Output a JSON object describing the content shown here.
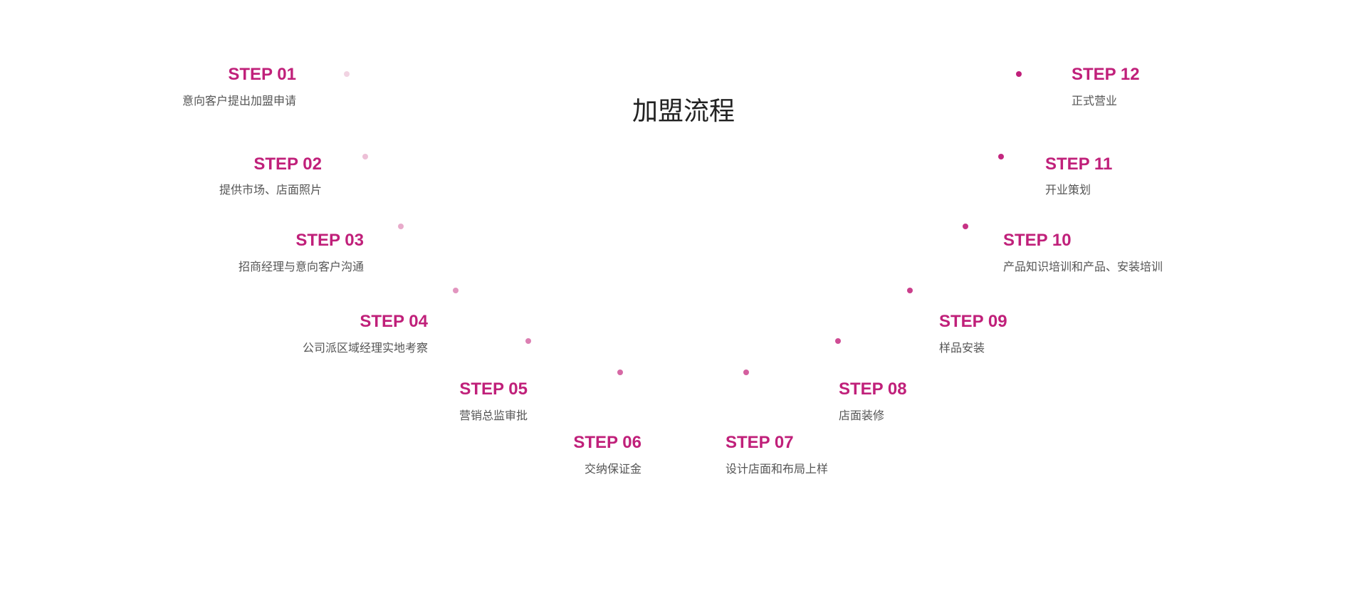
{
  "title": "加盟流程",
  "accent_color": "#c0207a",
  "steps": [
    {
      "label": "STEP 01",
      "desc": "意向客户提出加盟申请",
      "dot_color": "#f1d3e2"
    },
    {
      "label": "STEP 02",
      "desc": "提供市场、店面照片",
      "dot_color": "#edc0d7"
    },
    {
      "label": "STEP 03",
      "desc": "招商经理与意向客户沟通",
      "dot_color": "#e8abcb"
    },
    {
      "label": "STEP 04",
      "desc": "公司派区域经理实地考察",
      "dot_color": "#e295bf"
    },
    {
      "label": "STEP 05",
      "desc": "营销总监审批",
      "dot_color": "#dc7fb2"
    },
    {
      "label": "STEP 06",
      "desc": "交纳保证金",
      "dot_color": "#d669a5"
    },
    {
      "label": "STEP 07",
      "desc": "设计店面和布局上样",
      "dot_color": "#d45f9f"
    },
    {
      "label": "STEP 08",
      "desc": "店面装修",
      "dot_color": "#cf4c94"
    },
    {
      "label": "STEP 09",
      "desc": "样品安装",
      "dot_color": "#cb3f8c"
    },
    {
      "label": "STEP 10",
      "desc": "产品知识培训和产品、安装培训",
      "dot_color": "#c73285"
    },
    {
      "label": "STEP 11",
      "desc": "开业策划",
      "dot_color": "#c3277f"
    },
    {
      "label": "STEP 12",
      "desc": "正式营业",
      "dot_color": "#c0207a"
    }
  ]
}
